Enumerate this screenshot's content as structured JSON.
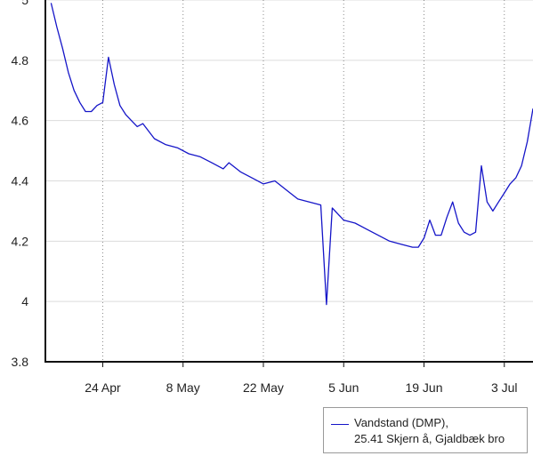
{
  "chart_data": {
    "type": "line",
    "xlim": [
      "2024-04-14",
      "2024-07-08"
    ],
    "ylim": [
      3.8,
      5.0
    ],
    "y_ticks": [
      3.8,
      4,
      4.2,
      4.4,
      4.6,
      4.8,
      5
    ],
    "y_tick_labels": [
      "3.8",
      "4",
      "4.2",
      "4.4",
      "4.6",
      "4.8",
      "5"
    ],
    "x_ticks": [
      "2024-04-24",
      "2024-05-08",
      "2024-05-22",
      "2024-06-05",
      "2024-06-19",
      "2024-07-03"
    ],
    "x_tick_labels": [
      "24 Apr",
      "8 May",
      "22 May",
      "5 Jun",
      "19 Jun",
      "3 Jul"
    ],
    "grid": true,
    "legend_position": "bottom-right",
    "colors": {
      "line": "#1515c8"
    },
    "series": [
      {
        "legend_line1": "Vandstand (DMP),",
        "legend_line2": "25.41 Skjern å, Gjaldbæk bro",
        "x": [
          "2024-04-15",
          "2024-04-16",
          "2024-04-17",
          "2024-04-18",
          "2024-04-19",
          "2024-04-20",
          "2024-04-21",
          "2024-04-22",
          "2024-04-23",
          "2024-04-24",
          "2024-04-25",
          "2024-04-26",
          "2024-04-27",
          "2024-04-28",
          "2024-04-29",
          "2024-04-30",
          "2024-05-01",
          "2024-05-03",
          "2024-05-05",
          "2024-05-07",
          "2024-05-09",
          "2024-05-11",
          "2024-05-13",
          "2024-05-15",
          "2024-05-16",
          "2024-05-18",
          "2024-05-20",
          "2024-05-22",
          "2024-05-24",
          "2024-05-26",
          "2024-05-28",
          "2024-05-30",
          "2024-06-01",
          "2024-06-02",
          "2024-06-03",
          "2024-06-05",
          "2024-06-07",
          "2024-06-09",
          "2024-06-11",
          "2024-06-13",
          "2024-06-15",
          "2024-06-17",
          "2024-06-18",
          "2024-06-19",
          "2024-06-20",
          "2024-06-21",
          "2024-06-22",
          "2024-06-23",
          "2024-06-24",
          "2024-06-25",
          "2024-06-26",
          "2024-06-27",
          "2024-06-28",
          "2024-06-29",
          "2024-06-30",
          "2024-07-01",
          "2024-07-02",
          "2024-07-03",
          "2024-07-04",
          "2024-07-05",
          "2024-07-06",
          "2024-07-07",
          "2024-07-08"
        ],
        "y": [
          4.99,
          4.91,
          4.84,
          4.76,
          4.7,
          4.66,
          4.63,
          4.63,
          4.65,
          4.66,
          4.81,
          4.72,
          4.65,
          4.62,
          4.6,
          4.58,
          4.59,
          4.54,
          4.52,
          4.51,
          4.49,
          4.48,
          4.46,
          4.44,
          4.46,
          4.43,
          4.41,
          4.39,
          4.4,
          4.37,
          4.34,
          4.33,
          4.32,
          3.99,
          4.31,
          4.27,
          4.26,
          4.24,
          4.22,
          4.2,
          4.19,
          4.18,
          4.18,
          4.21,
          4.27,
          4.22,
          4.22,
          4.28,
          4.33,
          4.26,
          4.23,
          4.22,
          4.23,
          4.45,
          4.33,
          4.3,
          4.33,
          4.36,
          4.39,
          4.41,
          4.45,
          4.53,
          4.64
        ]
      }
    ]
  }
}
